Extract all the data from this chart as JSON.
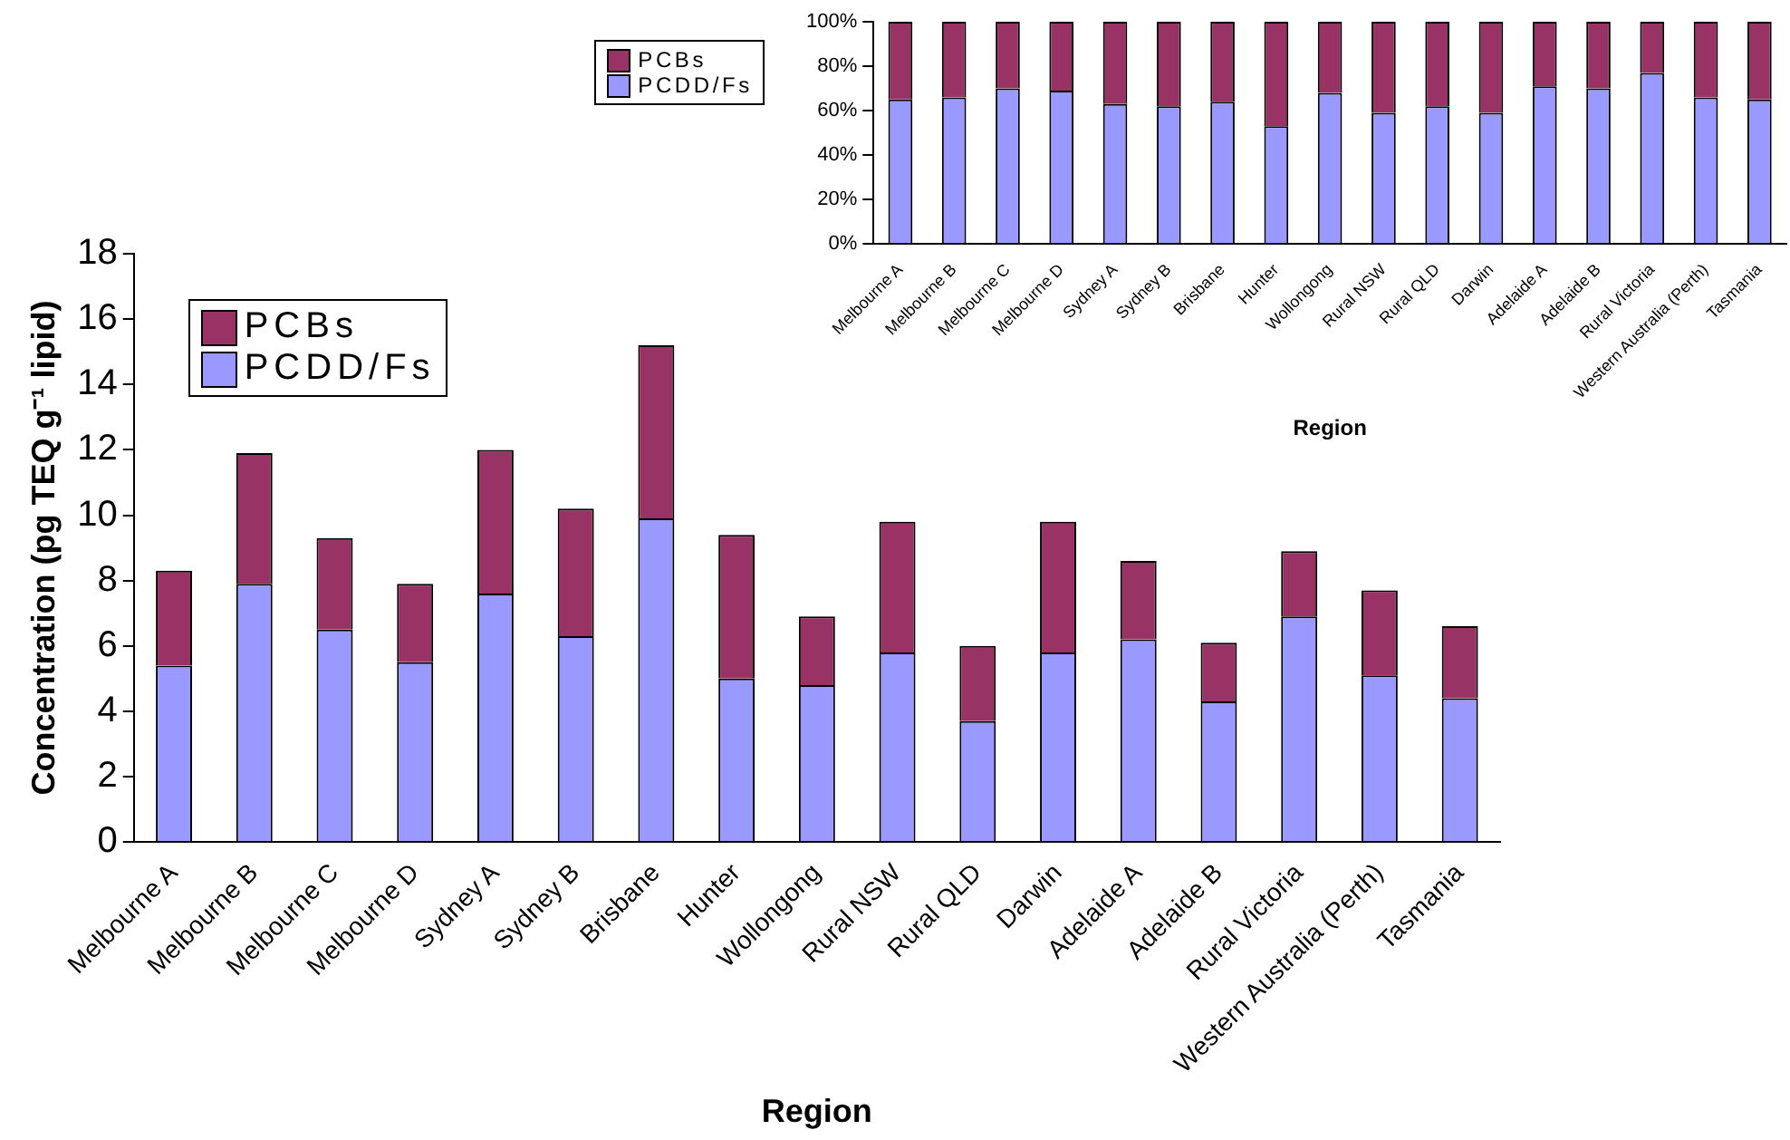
{
  "chart_data": [
    {
      "type": "bar",
      "stacked": true,
      "xlabel": "Region",
      "ylabel": "Concentration (pg TEQ g⁻¹ lipid)",
      "categories": [
        "Melbourne A",
        "Melbourne B",
        "Melbourne C",
        "Melbourne D",
        "Sydney A",
        "Sydney B",
        "Brisbane",
        "Hunter",
        "Wollongong",
        "Rural NSW",
        "Rural QLD",
        "Darwin",
        "Adelaide A",
        "Adelaide B",
        "Rural Victoria",
        "Western Australia (Perth)",
        "Tasmania"
      ],
      "series": [
        {
          "name": "PCDD/Fs",
          "color": "#9999ff",
          "values": [
            5.4,
            7.9,
            6.5,
            5.5,
            7.6,
            6.3,
            9.9,
            5.0,
            4.8,
            5.8,
            3.7,
            5.8,
            6.2,
            4.3,
            6.9,
            5.1,
            4.4
          ]
        },
        {
          "name": "PCBs",
          "color": "#993366",
          "values": [
            2.9,
            4.0,
            2.8,
            2.4,
            4.4,
            3.9,
            5.3,
            4.4,
            2.1,
            4.0,
            2.3,
            4.0,
            2.4,
            1.8,
            2.0,
            2.6,
            2.2
          ]
        }
      ],
      "ylim": [
        0,
        18
      ],
      "yticks": [
        0,
        2,
        4,
        6,
        8,
        10,
        12,
        14,
        16,
        18
      ],
      "grid": false,
      "legend": "top left"
    },
    {
      "type": "bar",
      "stacked": true,
      "xlabel": "Region",
      "categories": [
        "Melbourne A",
        "Melbourne B",
        "Melbourne C",
        "Melbourne D",
        "Sydney A",
        "Sydney B",
        "Brisbane",
        "Hunter",
        "Wollongong",
        "Rural NSW",
        "Rural QLD",
        "Darwin",
        "Adelaide A",
        "Adelaide B",
        "Rural Victoria",
        "Western Australia (Perth)",
        "Tasmania"
      ],
      "series": [
        {
          "name": "PCDD/Fs",
          "color": "#9999ff",
          "values": [
            65,
            66,
            70,
            69,
            63,
            62,
            64,
            53,
            68,
            59,
            62,
            59,
            71,
            70,
            77,
            66,
            65
          ]
        },
        {
          "name": "PCBs",
          "color": "#993366",
          "values": [
            35,
            34,
            30,
            31,
            37,
            38,
            36,
            47,
            32,
            41,
            38,
            41,
            29,
            30,
            23,
            34,
            35
          ]
        }
      ],
      "ylim": [
        0,
        100
      ],
      "yticks": [
        {
          "value": 0,
          "label": "0%"
        },
        {
          "value": 20,
          "label": "20%"
        },
        {
          "value": 40,
          "label": "40%"
        },
        {
          "value": 60,
          "label": "60%"
        },
        {
          "value": 80,
          "label": "80%"
        },
        {
          "value": 100,
          "label": "100%"
        }
      ],
      "grid": false,
      "legend": "left"
    }
  ]
}
